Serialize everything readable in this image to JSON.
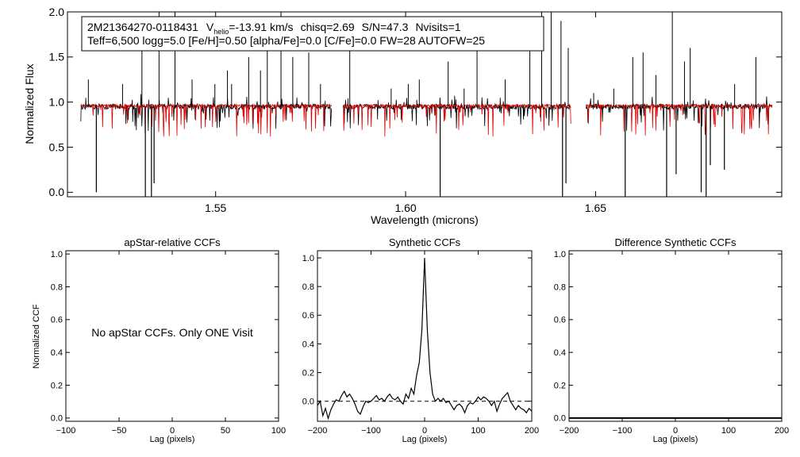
{
  "chart_data": [
    {
      "type": "line",
      "id": "spectrum",
      "info_line1": {
        "star": "2M21364270-0118431",
        "v_label": "V",
        "v_sub": "helio",
        "v_value": "=-13.91 km/s",
        "chisq": "chisq=2.69",
        "snr": "S/N=47.3",
        "nvisits": "Nvisits=1"
      },
      "info_line2": "Teff=6,500 logg=5.0 [Fe/H]=0.50 [alpha/Fe]=0.0 [C/Fe]=0.0 FW=28 AUTOFW=25",
      "xlabel": "Wavelength (microns)",
      "ylabel": "Normalized Flux",
      "xlim": [
        1.511,
        1.699
      ],
      "ylim": [
        -0.05,
        2.0
      ],
      "xticks": [
        1.55,
        1.6,
        1.65
      ],
      "xtick_labels": [
        "1.55",
        "1.60",
        "1.65"
      ],
      "yticks": [
        0.0,
        0.5,
        1.0,
        1.5,
        2.0
      ],
      "ytick_labels": [
        "0.0",
        "0.5",
        "1.0",
        "1.5",
        "2.0"
      ],
      "chip_ranges": [
        [
          1.5145,
          1.5805
        ],
        [
          1.5835,
          1.6435
        ],
        [
          1.6475,
          1.6965
        ]
      ],
      "series": [
        {
          "name": "observed",
          "color": "#000000",
          "level": 0.95,
          "noise": 0.03
        },
        {
          "name": "synthetic",
          "color": "#e00000",
          "level": 0.96,
          "noise": 0.015
        }
      ],
      "absorption_lines": [
        {
          "x": 1.5186,
          "y": 0.0
        },
        {
          "x": 1.5315,
          "y": -0.05
        },
        {
          "x": 1.5331,
          "y": -0.05
        },
        {
          "x": 1.5338,
          "y": 0.1
        },
        {
          "x": 1.6091,
          "y": -0.05
        },
        {
          "x": 1.6413,
          "y": -0.05
        },
        {
          "x": 1.6422,
          "y": 0.1
        },
        {
          "x": 1.6578,
          "y": -0.05
        },
        {
          "x": 1.6687,
          "y": -0.05
        },
        {
          "x": 1.6712,
          "y": 0.2
        },
        {
          "x": 1.6778,
          "y": 0.0
        },
        {
          "x": 1.6791,
          "y": -0.05
        },
        {
          "x": 1.6802,
          "y": 0.3
        },
        {
          "x": 1.6839,
          "y": 0.25
        }
      ],
      "emission_spikes": [
        {
          "x": 1.5165,
          "y": 1.25
        },
        {
          "x": 1.5255,
          "y": 1.2
        },
        {
          "x": 1.5306,
          "y": 1.75
        },
        {
          "x": 1.5351,
          "y": 2.0
        },
        {
          "x": 1.5393,
          "y": 2.0
        },
        {
          "x": 1.5438,
          "y": 1.25
        },
        {
          "x": 1.5498,
          "y": 1.2
        },
        {
          "x": 1.5531,
          "y": 1.35
        },
        {
          "x": 1.5542,
          "y": 1.2
        },
        {
          "x": 1.5587,
          "y": 1.5
        },
        {
          "x": 1.5618,
          "y": 1.35
        },
        {
          "x": 1.5636,
          "y": 1.6
        },
        {
          "x": 1.5672,
          "y": 2.0
        },
        {
          "x": 1.5703,
          "y": 1.5
        },
        {
          "x": 1.5745,
          "y": 1.55
        },
        {
          "x": 1.5776,
          "y": 1.2
        },
        {
          "x": 1.5853,
          "y": 1.7
        },
        {
          "x": 1.5962,
          "y": 1.15
        },
        {
          "x": 1.6007,
          "y": 1.2
        },
        {
          "x": 1.6036,
          "y": 1.25
        },
        {
          "x": 1.6112,
          "y": 1.45
        },
        {
          "x": 1.6154,
          "y": 1.15
        },
        {
          "x": 1.6188,
          "y": 1.6
        },
        {
          "x": 1.6262,
          "y": 1.25
        },
        {
          "x": 1.6327,
          "y": 1.7
        },
        {
          "x": 1.6358,
          "y": 2.0
        },
        {
          "x": 1.6383,
          "y": 2.0
        },
        {
          "x": 1.6409,
          "y": 1.9
        },
        {
          "x": 1.6428,
          "y": 1.6
        },
        {
          "x": 1.6495,
          "y": 1.1
        },
        {
          "x": 1.6548,
          "y": 1.15
        },
        {
          "x": 1.6598,
          "y": 1.5
        },
        {
          "x": 1.6625,
          "y": 1.55
        },
        {
          "x": 1.6659,
          "y": 1.3
        },
        {
          "x": 1.6702,
          "y": 2.0
        },
        {
          "x": 1.6734,
          "y": 1.45
        },
        {
          "x": 1.6749,
          "y": 1.6
        },
        {
          "x": 1.6866,
          "y": 1.2
        },
        {
          "x": 1.6922,
          "y": 1.5
        }
      ]
    },
    {
      "type": "line",
      "id": "apstar_ccf",
      "title": "apStar-relative CCFs",
      "xlabel": "Lag (pixels)",
      "ylabel": "Normalized CCF",
      "xlim": [
        -100,
        100
      ],
      "ylim": [
        -0.02,
        1.02
      ],
      "xticks": [
        -100,
        -50,
        0,
        50,
        100
      ],
      "xtick_labels": [
        "−100",
        "−50",
        "0",
        "50",
        "100"
      ],
      "yticks": [
        0.0,
        0.2,
        0.4,
        0.6,
        0.8,
        1.0
      ],
      "ytick_labels": [
        "0.0",
        "0.2",
        "0.4",
        "0.6",
        "0.8",
        "1.0"
      ],
      "message": "No apStar CCFs.  Only ONE Visit",
      "series": []
    },
    {
      "type": "line",
      "id": "synthetic_ccf",
      "title": "Synthetic CCFs",
      "xlabel": "Lag (pixels)",
      "xlim": [
        -200,
        200
      ],
      "ylim": [
        -0.14,
        1.05
      ],
      "xticks": [
        -200,
        -100,
        0,
        100,
        200
      ],
      "xtick_labels": [
        "−200",
        "−100",
        "0",
        "100",
        "200"
      ],
      "yticks": [
        0.0,
        0.2,
        0.4,
        0.6,
        0.8,
        1.0
      ],
      "ytick_labels": [
        "0.0",
        "0.2",
        "0.4",
        "0.6",
        "0.8",
        "1.0"
      ],
      "zero_line": 0.0,
      "series": [
        {
          "name": "ccf",
          "color": "#000000",
          "x": [
            -200,
            -195,
            -190,
            -185,
            -180,
            -175,
            -170,
            -165,
            -160,
            -155,
            -150,
            -145,
            -140,
            -135,
            -130,
            -125,
            -120,
            -115,
            -110,
            -105,
            -100,
            -95,
            -90,
            -85,
            -80,
            -75,
            -70,
            -65,
            -60,
            -55,
            -50,
            -45,
            -40,
            -35,
            -30,
            -25,
            -20,
            -15,
            -10,
            -5,
            0,
            5,
            10,
            15,
            20,
            25,
            30,
            35,
            40,
            45,
            50,
            55,
            60,
            65,
            70,
            75,
            80,
            85,
            90,
            95,
            100,
            105,
            110,
            115,
            120,
            125,
            130,
            135,
            140,
            145,
            150,
            155,
            160,
            165,
            170,
            175,
            180,
            185,
            190,
            195,
            200
          ],
          "y": [
            -0.03,
            0.0,
            -0.1,
            -0.05,
            -0.12,
            -0.06,
            -0.02,
            0.01,
            0.0,
            0.04,
            0.07,
            0.03,
            0.05,
            0.02,
            -0.02,
            -0.07,
            -0.09,
            -0.04,
            0.0,
            -0.01,
            0.0,
            0.02,
            0.04,
            0.01,
            0.02,
            0.0,
            0.03,
            0.05,
            0.02,
            0.01,
            0.03,
            0.0,
            -0.02,
            0.05,
            0.02,
            0.09,
            0.05,
            0.18,
            0.27,
            0.5,
            1.0,
            0.5,
            0.2,
            0.05,
            0.0,
            0.02,
            0.0,
            0.02,
            -0.01,
            0.0,
            -0.03,
            -0.06,
            -0.03,
            -0.02,
            -0.04,
            -0.08,
            -0.03,
            -0.01,
            -0.02,
            0.0,
            0.03,
            0.01,
            0.03,
            0.02,
            0.0,
            -0.03,
            0.0,
            -0.07,
            -0.02,
            0.02,
            0.04,
            0.06,
            0.0,
            -0.03,
            -0.06,
            -0.03,
            -0.05,
            -0.06,
            -0.08,
            -0.05,
            -0.07
          ]
        }
      ]
    },
    {
      "type": "line",
      "id": "difference_ccf",
      "title": "Difference Synthetic CCFs",
      "xlabel": "Lag (pixels)",
      "xlim": [
        -200,
        200
      ],
      "ylim": [
        -0.02,
        1.02
      ],
      "xticks": [
        -200,
        -100,
        0,
        100,
        200
      ],
      "xtick_labels": [
        "−200",
        "−100",
        "0",
        "100",
        "200"
      ],
      "yticks": [
        0.0,
        0.2,
        0.4,
        0.6,
        0.8,
        1.0
      ],
      "ytick_labels": [
        "0.0",
        "0.2",
        "0.4",
        "0.6",
        "0.8",
        "1.0"
      ],
      "series": [
        {
          "name": "difference",
          "color": "#000000",
          "x": [
            -200,
            200
          ],
          "y": [
            0.0,
            0.0
          ]
        }
      ]
    }
  ]
}
